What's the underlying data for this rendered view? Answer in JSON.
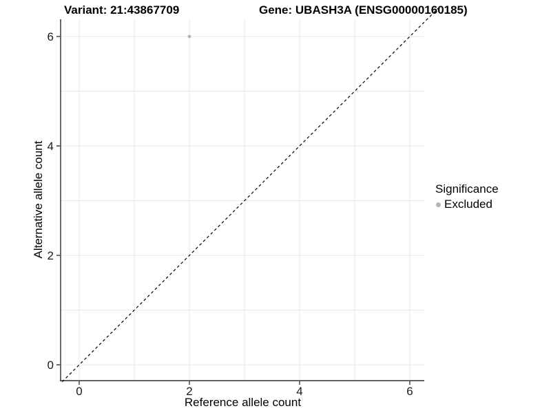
{
  "titles": {
    "variant": "Variant: 21:43867709",
    "gene": "Gene: UBASH3A (ENSG00000160185)"
  },
  "axes": {
    "x_label": "Reference allele count",
    "y_label": "Alternative allele count",
    "x_tick_labels": [
      "0",
      "2",
      "4",
      "6"
    ],
    "y_tick_labels": [
      "0",
      "2",
      "4",
      "6"
    ]
  },
  "legend": {
    "title": "Significance",
    "items": [
      {
        "label": "Excluded",
        "color": "#b4b4b4",
        "marker": "dot-icon"
      }
    ]
  },
  "colors": {
    "background": "#ffffff",
    "grid": "#e9e9e9",
    "axis_line": "#4d4d4d",
    "tick_mark": "#333333",
    "tick_text": "#1a1a1a",
    "reference_line": "#000000",
    "point": "#b4b4b4"
  },
  "chart_data": {
    "type": "scatter",
    "title": "Variant: 21:43867709 — Gene: UBASH3A (ENSG00000160185)",
    "xlabel": "Reference allele count",
    "ylabel": "Alternative allele count",
    "xlim": [
      -0.34,
      6.28
    ],
    "ylim": [
      -0.29,
      6.31
    ],
    "x_ticks": [
      0,
      2,
      4,
      6
    ],
    "y_ticks": [
      0,
      2,
      4,
      6
    ],
    "gridlines": {
      "x": [
        0,
        1,
        2,
        3,
        4,
        5,
        6
      ],
      "y": [
        0,
        1,
        2,
        3,
        4,
        5,
        6
      ]
    },
    "series": [
      {
        "name": "Excluded",
        "color": "#b4b4b4",
        "points": [
          {
            "x": 2,
            "y": 6
          }
        ]
      }
    ],
    "reference_line": {
      "type": "identity",
      "slope": 1,
      "intercept": 0,
      "style": "dashed",
      "from": [
        -0.31,
        -0.31
      ],
      "to": [
        6.52,
        6.52
      ]
    },
    "legend_position": "right",
    "legend_title": "Significance"
  }
}
